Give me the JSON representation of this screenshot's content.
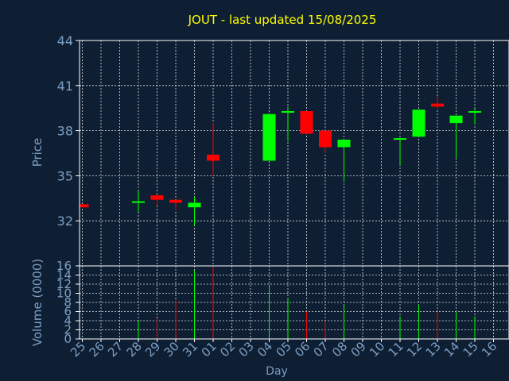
{
  "chart_data": {
    "type": "candlestick",
    "title": "JOUT - last updated 15/08/2025",
    "xlabel": "Day",
    "price_panel": {
      "ylabel": "Price",
      "ylim": [
        29,
        44
      ],
      "yticks": [
        32,
        35,
        38,
        41,
        44
      ]
    },
    "volume_panel": {
      "ylabel": "Volume (0000)",
      "ylim": [
        0,
        16
      ],
      "yticks": [
        0,
        2,
        4,
        6,
        8,
        10,
        12,
        14,
        16
      ]
    },
    "categories": [
      "25",
      "26",
      "27",
      "28",
      "29",
      "30",
      "31",
      "01",
      "02",
      "03",
      "04",
      "05",
      "06",
      "07",
      "08",
      "09",
      "10",
      "11",
      "12",
      "13",
      "14",
      "15",
      "16"
    ],
    "candles": [
      {
        "day": "25",
        "open": 33.1,
        "close": 32.9,
        "high": 33.1,
        "low": 32.9,
        "volume": 0
      },
      {
        "day": "28",
        "open": 33.3,
        "close": 33.3,
        "high": 34.0,
        "low": 32.6,
        "volume": 4
      },
      {
        "day": "29",
        "open": 33.7,
        "close": 33.4,
        "high": 33.7,
        "low": 33.0,
        "volume": 4.5
      },
      {
        "day": "30",
        "open": 33.4,
        "close": 33.2,
        "high": 33.4,
        "low": 32.7,
        "volume": 8.5
      },
      {
        "day": "31",
        "open": 32.9,
        "close": 33.2,
        "high": 33.6,
        "low": 31.7,
        "volume": 15
      },
      {
        "day": "01",
        "open": 36.4,
        "close": 36.0,
        "high": 38.5,
        "low": 35.0,
        "volume": 16
      },
      {
        "day": "04",
        "open": 36.0,
        "close": 39.1,
        "high": 39.1,
        "low": 36.0,
        "volume": 11.5
      },
      {
        "day": "05",
        "open": 39.2,
        "close": 39.3,
        "high": 39.6,
        "low": 37.3,
        "volume": 9
      },
      {
        "day": "06",
        "open": 39.3,
        "close": 37.8,
        "high": 39.3,
        "low": 37.8,
        "volume": 6
      },
      {
        "day": "07",
        "open": 38.0,
        "close": 36.9,
        "high": 38.0,
        "low": 36.5,
        "volume": 4
      },
      {
        "day": "08",
        "open": 36.9,
        "close": 37.4,
        "high": 37.4,
        "low": 34.6,
        "volume": 7.5
      },
      {
        "day": "11",
        "open": 37.5,
        "close": 37.5,
        "high": 37.5,
        "low": 35.7,
        "volume": 5
      },
      {
        "day": "12",
        "open": 37.6,
        "close": 39.4,
        "high": 39.4,
        "low": 37.6,
        "volume": 7.5
      },
      {
        "day": "13",
        "open": 39.8,
        "close": 39.6,
        "high": 40.3,
        "low": 39.4,
        "volume": 6
      },
      {
        "day": "14",
        "open": 38.5,
        "close": 39.0,
        "high": 39.0,
        "low": 36.2,
        "volume": 6
      },
      {
        "day": "15",
        "open": 39.3,
        "close": 39.3,
        "high": 39.5,
        "low": 38.4,
        "volume": 5
      }
    ],
    "colors": {
      "up": "#00ff00",
      "down": "#ff0000",
      "background": "#0f1f33",
      "grid": "#ffffff",
      "text": "#7b9fc4",
      "title": "#ffff00"
    },
    "grid": true
  }
}
